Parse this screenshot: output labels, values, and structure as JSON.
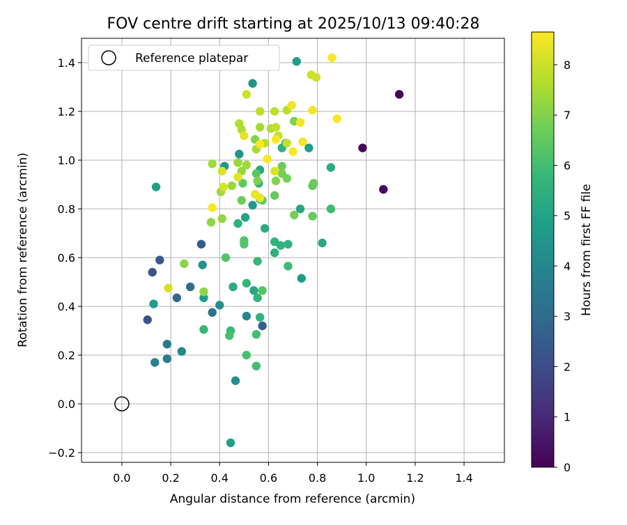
{
  "chart_data": {
    "type": "scatter",
    "title": "FOV centre drift starting at 2025/10/13 09:40:28",
    "xlabel": "Angular distance from reference (arcmin)",
    "ylabel": "Rotation from reference (arcmin)",
    "xlim": [
      -0.165,
      1.565
    ],
    "ylim": [
      -0.24,
      1.5
    ],
    "x_ticks": [
      0.0,
      0.2,
      0.4,
      0.6,
      0.8,
      1.0,
      1.2,
      1.4
    ],
    "x_tick_labels": [
      "0.0",
      "0.2",
      "0.4",
      "0.6",
      "0.8",
      "1.0",
      "1.2",
      "1.4"
    ],
    "y_ticks": [
      -0.2,
      0.0,
      0.2,
      0.4,
      0.6,
      0.8,
      1.0,
      1.2,
      1.4
    ],
    "y_tick_labels": [
      "−0.2",
      "0.0",
      "0.2",
      "0.4",
      "0.6",
      "0.8",
      "1.0",
      "1.2",
      "1.4"
    ],
    "grid": true,
    "legend": {
      "placement": "top-left",
      "entries": [
        {
          "label": "Reference platepar",
          "marker": "open-circle",
          "x": 0.0,
          "y": 0.0
        }
      ]
    },
    "colorbar": {
      "label": "Hours from first FF file",
      "colormap": "viridis",
      "range": [
        0,
        8.65
      ],
      "ticks": [
        0,
        1,
        2,
        3,
        4,
        5,
        6,
        7,
        8
      ],
      "tick_labels": [
        "0",
        "1",
        "2",
        "3",
        "4",
        "5",
        "6",
        "7",
        "8"
      ],
      "stops": [
        "#440154",
        "#482878",
        "#3e4a89",
        "#31688e",
        "#26828e",
        "#1f9e89",
        "#35b779",
        "#6ece58",
        "#b5de2b",
        "#fde725"
      ]
    },
    "points": [
      [
        1.135,
        1.27,
        0.1
      ],
      [
        0.985,
        1.05,
        0.2
      ],
      [
        1.07,
        0.88,
        0.3
      ],
      [
        0.105,
        0.345,
        2.2
      ],
      [
        0.125,
        0.54,
        2.3
      ],
      [
        0.155,
        0.59,
        2.4
      ],
      [
        0.325,
        0.655,
        2.5
      ],
      [
        0.575,
        0.32,
        2.6
      ],
      [
        0.225,
        0.435,
        3.0
      ],
      [
        0.28,
        0.48,
        3.1
      ],
      [
        0.37,
        0.375,
        3.2
      ],
      [
        0.185,
        0.245,
        3.5
      ],
      [
        0.185,
        0.185,
        3.6
      ],
      [
        0.135,
        0.17,
        3.8
      ],
      [
        0.245,
        0.215,
        4.0
      ],
      [
        0.51,
        0.36,
        4.0
      ],
      [
        0.465,
        0.095,
        4.3
      ],
      [
        0.4,
        0.405,
        4.3
      ],
      [
        0.33,
        0.57,
        4.5
      ],
      [
        0.535,
        1.315,
        4.4
      ],
      [
        0.48,
        1.025,
        4.4
      ],
      [
        0.42,
        0.975,
        4.6
      ],
      [
        0.715,
        1.405,
        4.8
      ],
      [
        0.765,
        1.05,
        4.8
      ],
      [
        0.535,
        0.815,
        4.6
      ],
      [
        0.335,
        0.435,
        4.7
      ],
      [
        0.735,
        0.515,
        4.7
      ],
      [
        0.13,
        0.41,
        4.8
      ],
      [
        0.14,
        0.89,
        4.9
      ],
      [
        0.445,
        -0.16,
        4.9
      ],
      [
        0.505,
        0.765,
        5.0
      ],
      [
        0.565,
        0.96,
        5.1
      ],
      [
        0.54,
        0.465,
        5.1
      ],
      [
        0.73,
        0.8,
        5.1
      ],
      [
        0.82,
        0.66,
        5.2
      ],
      [
        0.855,
        0.97,
        5.3
      ],
      [
        0.455,
        0.48,
        5.3
      ],
      [
        0.56,
        0.905,
        5.4
      ],
      [
        0.585,
        0.72,
        5.4
      ],
      [
        0.67,
        1.07,
        5.4
      ],
      [
        0.565,
        0.84,
        5.5
      ],
      [
        0.655,
        1.05,
        5.5
      ],
      [
        0.475,
        0.74,
        5.5
      ],
      [
        0.625,
        0.665,
        5.6
      ],
      [
        0.625,
        0.62,
        5.5
      ],
      [
        0.65,
        0.65,
        5.6
      ],
      [
        0.68,
        0.655,
        5.6
      ],
      [
        0.51,
        0.495,
        5.7
      ],
      [
        0.565,
        0.355,
        5.6
      ],
      [
        0.555,
        0.435,
        5.7
      ],
      [
        0.555,
        0.585,
        5.8
      ],
      [
        0.335,
        0.305,
        5.8
      ],
      [
        0.445,
        0.3,
        5.8
      ],
      [
        0.68,
        0.565,
        5.9
      ],
      [
        0.855,
        0.8,
        5.9
      ],
      [
        0.55,
        0.285,
        6.0
      ],
      [
        0.51,
        0.2,
        6.1
      ],
      [
        0.55,
        0.155,
        6.0
      ],
      [
        0.44,
        0.28,
        6.1
      ],
      [
        0.5,
        0.67,
        6.2
      ],
      [
        0.5,
        0.655,
        6.3
      ],
      [
        0.425,
        0.6,
        6.3
      ],
      [
        0.575,
        0.465,
        6.3
      ],
      [
        0.55,
        0.945,
        6.4
      ],
      [
        0.495,
        0.905,
        6.5
      ],
      [
        0.575,
        0.835,
        6.5
      ],
      [
        0.78,
        0.895,
        6.5
      ],
      [
        0.785,
        0.905,
        6.6
      ],
      [
        0.78,
        0.77,
        6.6
      ],
      [
        0.625,
        0.855,
        6.6
      ],
      [
        0.49,
        0.835,
        6.7
      ],
      [
        0.655,
        0.975,
        6.7
      ],
      [
        0.655,
        0.945,
        6.8
      ],
      [
        0.675,
        0.925,
        6.8
      ],
      [
        0.705,
        1.16,
        6.9
      ],
      [
        0.705,
        0.775,
        6.8
      ],
      [
        0.555,
        0.915,
        6.9
      ],
      [
        0.63,
        0.915,
        7.0
      ],
      [
        0.545,
        1.085,
        7.0
      ],
      [
        0.255,
        0.575,
        7.1
      ],
      [
        0.335,
        0.46,
        7.2
      ],
      [
        0.41,
        0.76,
        7.2
      ],
      [
        0.365,
        0.745,
        7.2
      ],
      [
        0.475,
        0.99,
        7.3
      ],
      [
        0.49,
        0.955,
        7.3
      ],
      [
        0.45,
        0.895,
        7.3
      ],
      [
        0.405,
        0.87,
        7.4
      ],
      [
        0.37,
        0.985,
        7.4
      ],
      [
        0.51,
        0.98,
        7.4
      ],
      [
        0.55,
        1.045,
        7.5
      ],
      [
        0.565,
        1.135,
        7.5
      ],
      [
        0.61,
        1.13,
        7.6
      ],
      [
        0.48,
        1.15,
        7.6
      ],
      [
        0.49,
        1.125,
        7.6
      ],
      [
        0.585,
        1.07,
        7.7
      ],
      [
        0.565,
        1.2,
        7.8
      ],
      [
        0.625,
        1.2,
        7.8
      ],
      [
        0.675,
        1.205,
        7.8
      ],
      [
        0.63,
        1.135,
        7.9
      ],
      [
        0.675,
        1.07,
        7.9
      ],
      [
        0.64,
        1.1,
        7.9
      ],
      [
        0.51,
        1.27,
        8.0
      ],
      [
        0.775,
        1.35,
        8.0
      ],
      [
        0.795,
        1.34,
        8.0
      ],
      [
        0.19,
        0.475,
        8.1
      ],
      [
        0.41,
        0.955,
        8.1
      ],
      [
        0.415,
        0.89,
        8.1
      ],
      [
        0.625,
        0.955,
        8.2
      ],
      [
        0.475,
        0.93,
        8.3
      ],
      [
        0.5,
        1.1,
        8.3
      ],
      [
        0.545,
        0.86,
        8.4
      ],
      [
        0.565,
        0.845,
        8.4
      ],
      [
        0.695,
        1.225,
        8.5
      ],
      [
        0.78,
        1.205,
        8.5
      ],
      [
        0.73,
        1.155,
        8.5
      ],
      [
        0.74,
        1.075,
        8.5
      ],
      [
        0.7,
        1.035,
        8.6
      ],
      [
        0.86,
        1.42,
        8.6
      ],
      [
        0.88,
        1.17,
        8.6
      ],
      [
        0.63,
        1.085,
        8.6
      ],
      [
        0.595,
        1.005,
        8.6
      ],
      [
        0.37,
        0.805,
        8.6
      ],
      [
        0.565,
        1.065,
        8.6
      ]
    ]
  }
}
